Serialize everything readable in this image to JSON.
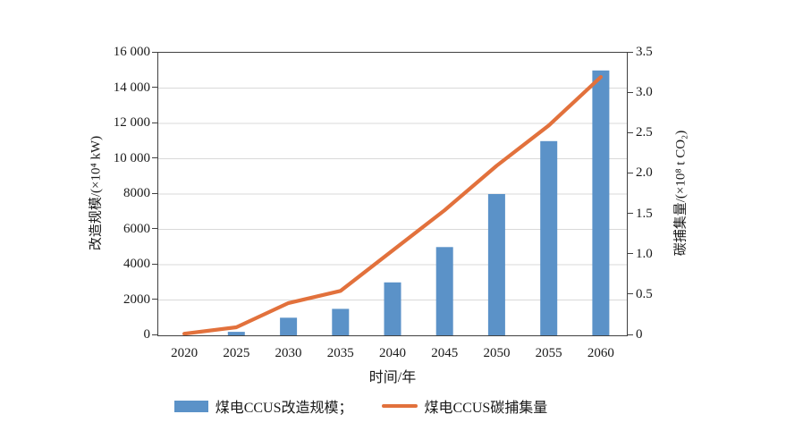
{
  "chart_data": {
    "type": "combo-bar-line",
    "title": "",
    "categories": [
      "2020",
      "2025",
      "2030",
      "2035",
      "2040",
      "2045",
      "2050",
      "2055",
      "2060"
    ],
    "series": [
      {
        "name": "煤电CCUS改造规模",
        "type": "bar",
        "axis": "left",
        "color": "#5B92C8",
        "values": [
          0,
          200,
          1000,
          1500,
          3000,
          5000,
          8000,
          11000,
          15000
        ]
      },
      {
        "name": "煤电CCUS碳捕集量",
        "type": "line",
        "axis": "right",
        "color": "#E2713C",
        "values": [
          0.02,
          0.1,
          0.4,
          0.55,
          1.05,
          1.55,
          2.1,
          2.6,
          3.2
        ]
      }
    ],
    "left_axis": {
      "label": "改造规模/(×10⁴ kW)",
      "min": 0,
      "max": 16000,
      "step": 2000,
      "tick_labels": [
        "0",
        "2000",
        "4000",
        "6000",
        "8000",
        "10 000",
        "12 000",
        "14 000",
        "16 000"
      ]
    },
    "right_axis": {
      "label": "碳捕集量/(×10⁸ t CO₂)",
      "min": 0,
      "max": 3.5,
      "step": 0.5,
      "tick_labels": [
        "0",
        "0.5",
        "1.0",
        "1.5",
        "2.0",
        "2.5",
        "3.0",
        "3.5"
      ]
    },
    "x_axis": {
      "label": "时间/年"
    },
    "legend": {
      "bar_label": "煤电CCUS改造规模；",
      "line_label": "煤电CCUS碳捕集量"
    },
    "grid": true,
    "legend_position": "bottom",
    "colors": {
      "grid": "#D9D9D9",
      "axis": "#404040",
      "text": "#1A1A1A"
    }
  }
}
